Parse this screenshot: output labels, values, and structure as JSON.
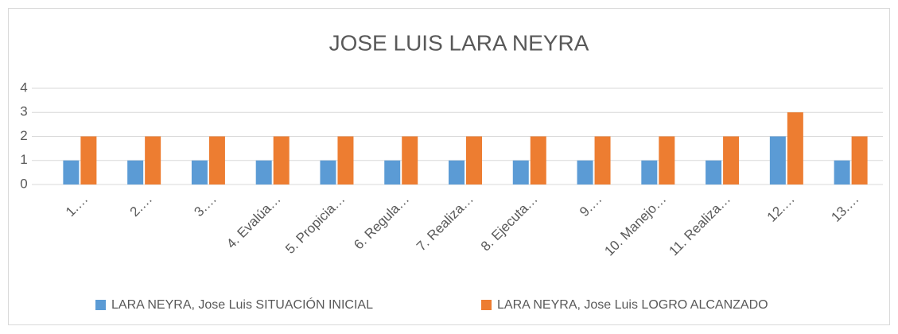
{
  "chart_data": {
    "type": "bar",
    "title": "JOSE LUIS LARA NEYRA",
    "categories": [
      "1.…",
      "2.…",
      "3.…",
      "4.  Evalúa…",
      "5.  Propicia…",
      "6.  Regula…",
      "7.  Realiza…",
      "8.  Ejecuta…",
      "9.…",
      "10. Manejo…",
      "11. Realiza…",
      "12.…",
      "13.…"
    ],
    "series": [
      {
        "name": "LARA NEYRA, Jose Luis SITUACIÓN INICIAL",
        "color": "#5b9bd5",
        "values": [
          1,
          1,
          1,
          1,
          1,
          1,
          1,
          1,
          1,
          1,
          1,
          2,
          1
        ]
      },
      {
        "name": "LARA NEYRA, Jose Luis LOGRO ALCANZADO",
        "color": "#ed7d31",
        "values": [
          2,
          2,
          2,
          2,
          2,
          2,
          2,
          2,
          2,
          2,
          2,
          3,
          2
        ]
      }
    ],
    "ylim": [
      0,
      4
    ],
    "yticks": [
      0,
      1,
      2,
      3,
      4
    ],
    "grid": true,
    "legend": "bottom"
  }
}
